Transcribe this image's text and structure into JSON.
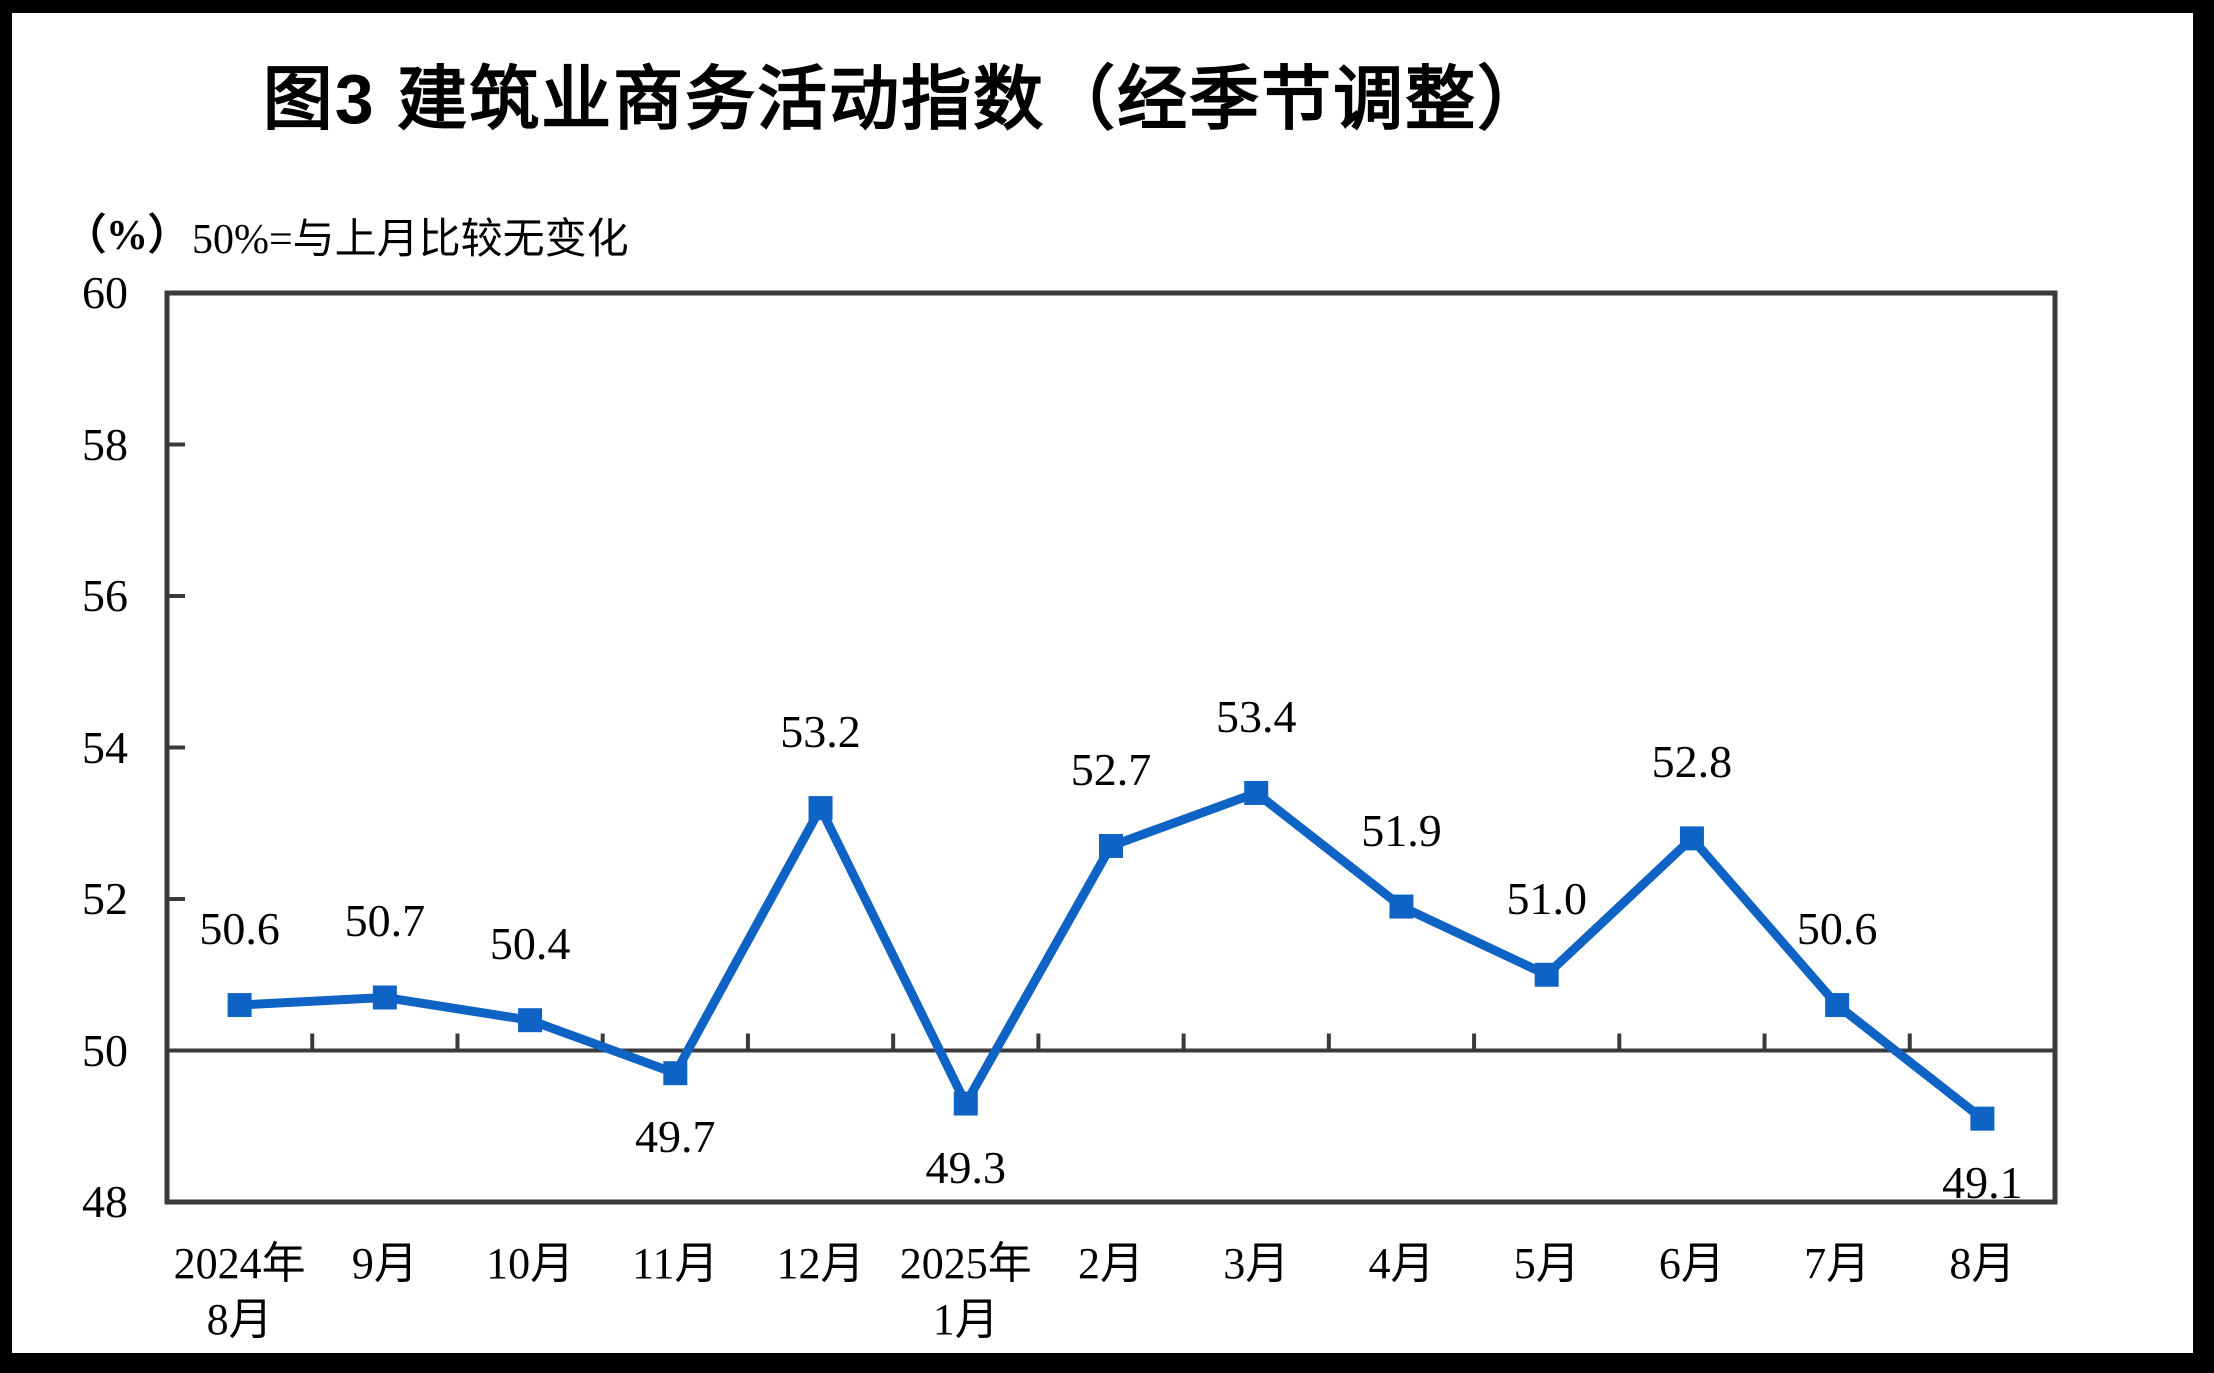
{
  "title": "图3  建筑业商务活动指数（经季节调整）",
  "y_axis_unit": "（%）",
  "reference_note": "50%=与上月比较无变化",
  "colors": {
    "line": "#0F63C4",
    "axis": "#3a3a3a",
    "text": "#000000",
    "background": "#ffffff",
    "outer_border": "#000000"
  },
  "chart_data": {
    "type": "line",
    "title": "图3  建筑业商务活动指数（经季节调整）",
    "subtitle": "50%=与上月比较无变化",
    "ylabel": "（%）",
    "xlabel": "",
    "categories": [
      "2024年\n8月",
      "9月",
      "10月",
      "11月",
      "12月",
      "2025年\n1月",
      "2月",
      "3月",
      "4月",
      "5月",
      "6月",
      "7月",
      "8月"
    ],
    "values": [
      50.6,
      50.7,
      50.4,
      49.7,
      53.2,
      49.3,
      52.7,
      53.4,
      51.9,
      51.0,
      52.8,
      50.6,
      49.1
    ],
    "data_label_decimals": 1,
    "label_positions": [
      "above",
      "above",
      "above",
      "below",
      "above",
      "below",
      "above",
      "above",
      "above",
      "above",
      "above",
      "above",
      "below"
    ],
    "ylim": [
      48,
      60
    ],
    "yticks": [
      60,
      58,
      56,
      54,
      52,
      50,
      48
    ],
    "reference_line": 50,
    "marker": "square",
    "grid": false,
    "legend": "none"
  }
}
